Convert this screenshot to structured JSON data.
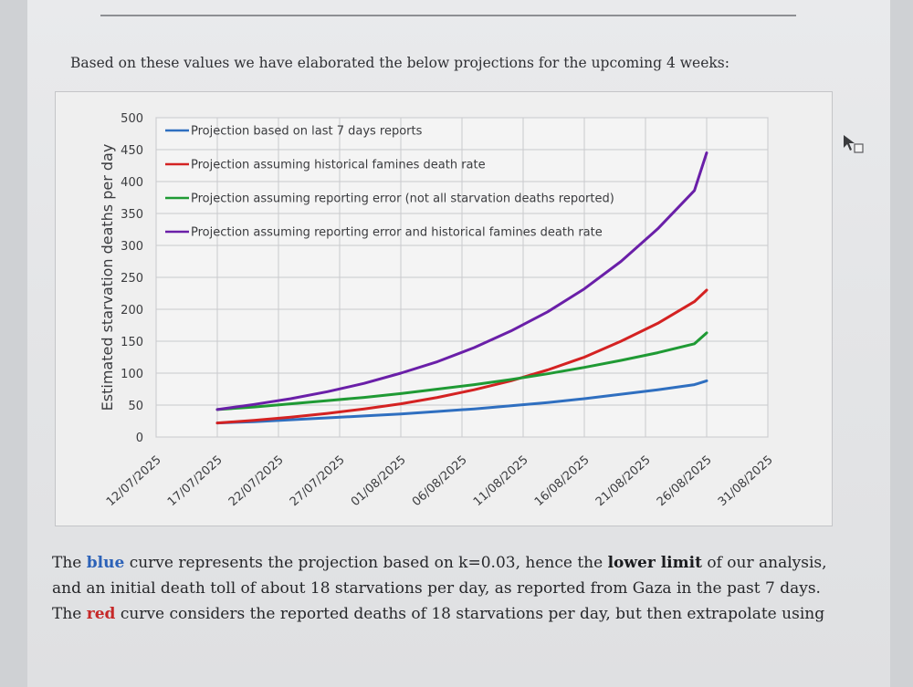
{
  "intro": "Based on these values we have elaborated the below projections for the upcoming 4 weeks:",
  "chart_data": {
    "type": "line",
    "ylabel": "Estimated starvation deaths per day",
    "xlabel": "",
    "ylim": [
      0,
      500
    ],
    "y_ticks": [
      0,
      50,
      100,
      150,
      200,
      250,
      300,
      350,
      400,
      450,
      500
    ],
    "x_range": [
      "2025-07-12",
      "2025-08-31"
    ],
    "x_tick_labels": [
      "12/07/2025",
      "17/07/2025",
      "22/07/2025",
      "27/07/2025",
      "01/08/2025",
      "06/08/2025",
      "11/08/2025",
      "16/08/2025",
      "21/08/2025",
      "26/08/2025",
      "31/08/2025"
    ],
    "grid": true,
    "legend_position": "top-left",
    "x": [
      "2025-07-17",
      "2025-07-20",
      "2025-07-23",
      "2025-07-26",
      "2025-07-29",
      "2025-08-01",
      "2025-08-04",
      "2025-08-07",
      "2025-08-10",
      "2025-08-13",
      "2025-08-16",
      "2025-08-19",
      "2025-08-22",
      "2025-08-25",
      "2025-08-26"
    ],
    "series": [
      {
        "name": "Projection based on last 7 days reports",
        "color": "#2f6fc0",
        "values": [
          22,
          24,
          27,
          30,
          33,
          36,
          40,
          44,
          49,
          54,
          60,
          67,
          74,
          82,
          88
        ]
      },
      {
        "name": "Projection assuming historical famines death rate",
        "color": "#d42222",
        "values": [
          22,
          26,
          31,
          37,
          44,
          52,
          62,
          74,
          88,
          105,
          125,
          150,
          178,
          212,
          230
        ]
      },
      {
        "name": "Projection assuming reporting error (not all starvation deaths reported)",
        "color": "#1f9a34",
        "values": [
          43,
          47,
          52,
          57,
          62,
          68,
          75,
          82,
          90,
          99,
          109,
          120,
          132,
          146,
          163
        ]
      },
      {
        "name": "Projection assuming reporting error and historical famines death rate",
        "color": "#6a1fa8",
        "values": [
          43,
          51,
          60,
          71,
          84,
          100,
          118,
          140,
          166,
          196,
          232,
          275,
          326,
          386,
          445
        ]
      }
    ]
  },
  "body": {
    "line1_a": "The ",
    "line1_blue": "blue",
    "line1_b": " curve represents the projection based on k=0.03, hence the ",
    "line1_bold": "lower limit",
    "line1_c": " of our analysis,",
    "line2": "and an initial death toll of about 18 starvations per day, as reported from Gaza in the past 7 days.",
    "line3_a": "The ",
    "line3_red": "red",
    "line3_b": " curve considers the reported deaths of 18 starvations per day, but then extrapolate using"
  },
  "icons": {
    "cursor": "cursor-arrow-icon"
  }
}
